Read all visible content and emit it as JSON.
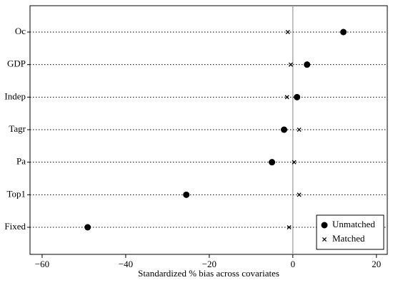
{
  "chart_data": {
    "type": "dot",
    "xlabel": "Standardized % bias across covariates",
    "categories": [
      "Oc",
      "GDP",
      "Indep",
      "Tagr",
      "Pa",
      "Top1",
      "Fixed"
    ],
    "series": [
      {
        "name": "Unmatched",
        "color": "#000000",
        "marker": "circle",
        "values": [
          12.1,
          3.4,
          1.0,
          -2.1,
          -5.0,
          -25.5,
          -49.1
        ]
      },
      {
        "name": "Matched",
        "color": "#000000",
        "marker": "x",
        "values": [
          -1.2,
          -0.5,
          -1.4,
          1.5,
          0.3,
          1.5,
          -0.9
        ]
      }
    ],
    "xlim": [
      -62.9,
      22.6
    ],
    "xticks": [
      {
        "value": -60,
        "label": "−60"
      },
      {
        "value": -40,
        "label": "−40"
      },
      {
        "value": -20,
        "label": "−20"
      },
      0,
      20
    ],
    "xline": 0,
    "legend": "bottom-right"
  }
}
